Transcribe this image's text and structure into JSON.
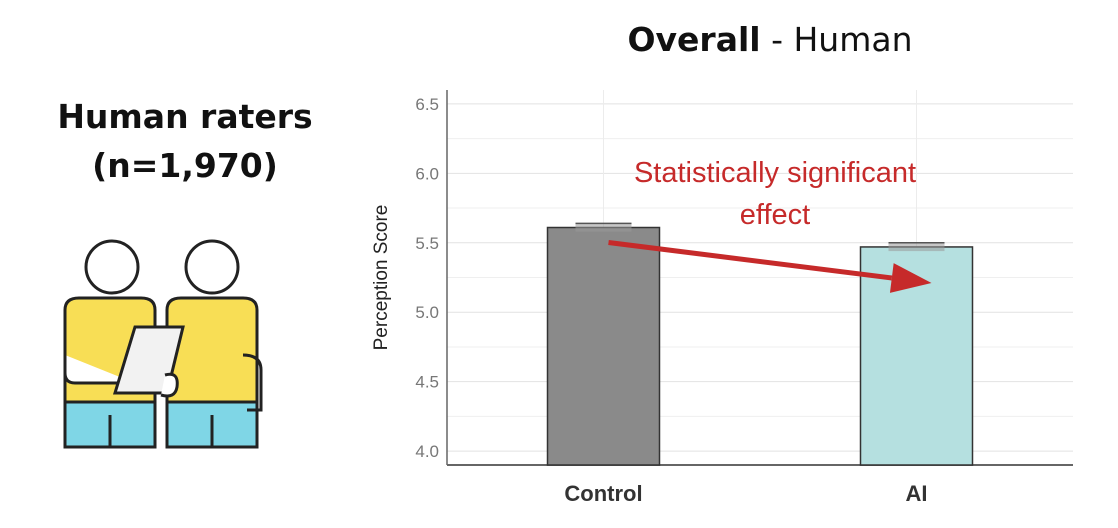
{
  "left_panel": {
    "title_line1": "Human raters",
    "title_line2": "(n=1,970)",
    "illustration_icon": "two-people-reviewing-clipboard-icon",
    "colors": {
      "shirt": "#f8de55",
      "pants": "#7fd6e6",
      "outline": "#222222"
    }
  },
  "chart_title": {
    "bold": "Overall",
    "rest": " - Human"
  },
  "chart_data": {
    "type": "bar",
    "categories": [
      "Control",
      "AI"
    ],
    "values": [
      5.61,
      5.47
    ],
    "errors": [
      0.03,
      0.03
    ],
    "ylabel": "Perception Score",
    "xlabel": "",
    "ylim": [
      3.9,
      6.6
    ],
    "yticks": [
      "4.0",
      "4.5",
      "5.0",
      "5.5",
      "6.0",
      "6.5"
    ],
    "grid": true,
    "bar_colors": [
      "#8a8a8a",
      "#b5e0e0"
    ],
    "annotation": {
      "line1": "Statistically significant",
      "line2": "effect",
      "color": "#c62a2a"
    }
  }
}
